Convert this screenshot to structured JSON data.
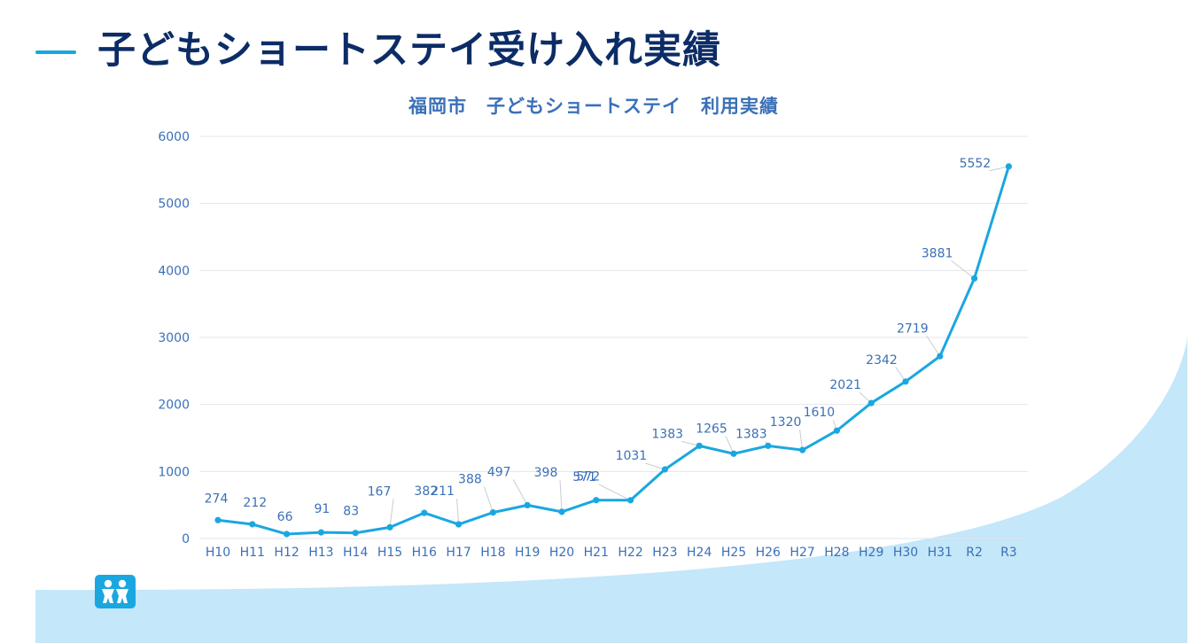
{
  "slide": {
    "title": "子どもショートステイ受け入れ実績"
  },
  "colors": {
    "accent": "#1aa7e0",
    "title": "#0c2c66",
    "label": "#3b70b8",
    "wave": "#c4e7f9"
  },
  "icons": {
    "logo": "children-logo-icon"
  },
  "chart_data": {
    "type": "line",
    "title": "福岡市　子どもショートステイ　利用実績",
    "xlabel": "",
    "ylabel": "",
    "ylim": [
      0,
      6000
    ],
    "yticks": [
      "0",
      "1000",
      "2000",
      "3000",
      "4000",
      "5000",
      "6000"
    ],
    "grid": true,
    "legend": "none",
    "categories": [
      "H10",
      "H11",
      "H12",
      "H13",
      "H14",
      "H15",
      "H16",
      "H17",
      "H18",
      "H19",
      "H20",
      "H21",
      "H22",
      "H23",
      "H24",
      "H25",
      "H26",
      "H27",
      "H28",
      "H29",
      "H30",
      "H31",
      "R2",
      "R3"
    ],
    "series": [
      {
        "color": "#1aa7e0",
        "values": [
          274,
          212,
          66,
          91,
          83,
          167,
          382,
          211,
          388,
          497,
          398,
          572,
          571,
          1031,
          1383,
          1265,
          1383,
          1320,
          1610,
          2021,
          2342,
          2719,
          3881,
          5552
        ],
        "data_labels": [
          "274",
          "212",
          "66",
          "91",
          "83",
          "167",
          "382",
          "211",
          "388",
          "497",
          "398",
          "572",
          "571",
          "1031",
          "1383",
          "1265",
          "1383",
          "1320",
          "1610",
          "2021",
          "2342",
          "2719",
          "3881",
          "5552"
        ]
      }
    ]
  }
}
